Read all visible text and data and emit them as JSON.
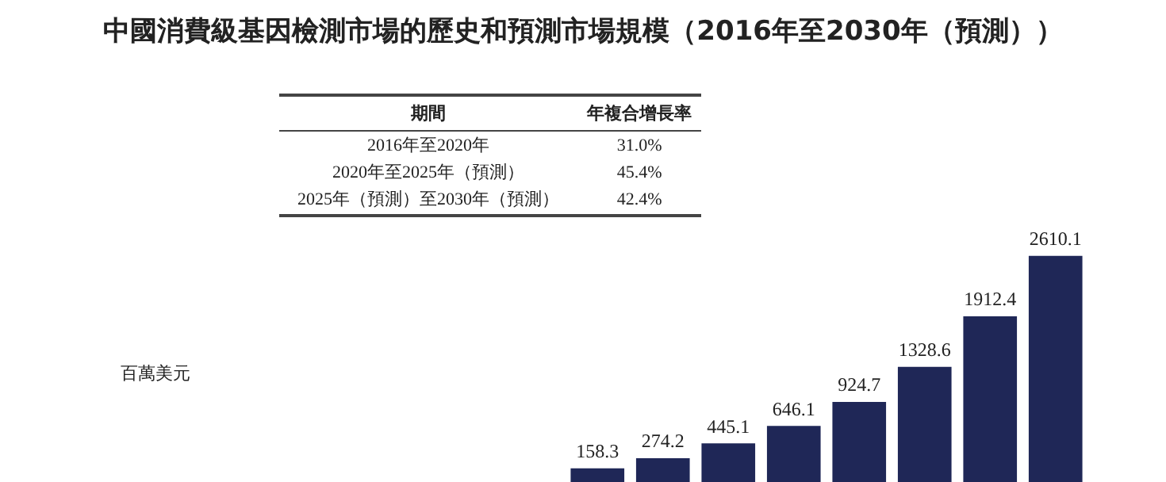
{
  "chart_data": {
    "type": "bar",
    "title": "中國消費級基因檢測市場的歷史和預測市場規模（2016年至2030年（預測））",
    "categories": [
      null,
      null,
      null,
      null,
      null,
      null,
      null,
      null
    ],
    "values": [
      158.3,
      274.2,
      445.1,
      646.1,
      924.7,
      1328.6,
      1912.4,
      2610.1
    ],
    "color": "#1f2757",
    "data_labels": true,
    "annotations": [
      "期間",
      "年複合增長率",
      "2016年至2020年",
      "31.0%",
      "2020年至2025年（預測）",
      "45.4%",
      "2025年（預測）至2030年（預測）",
      "42.4%",
      "百萬美元"
    ]
  }
}
